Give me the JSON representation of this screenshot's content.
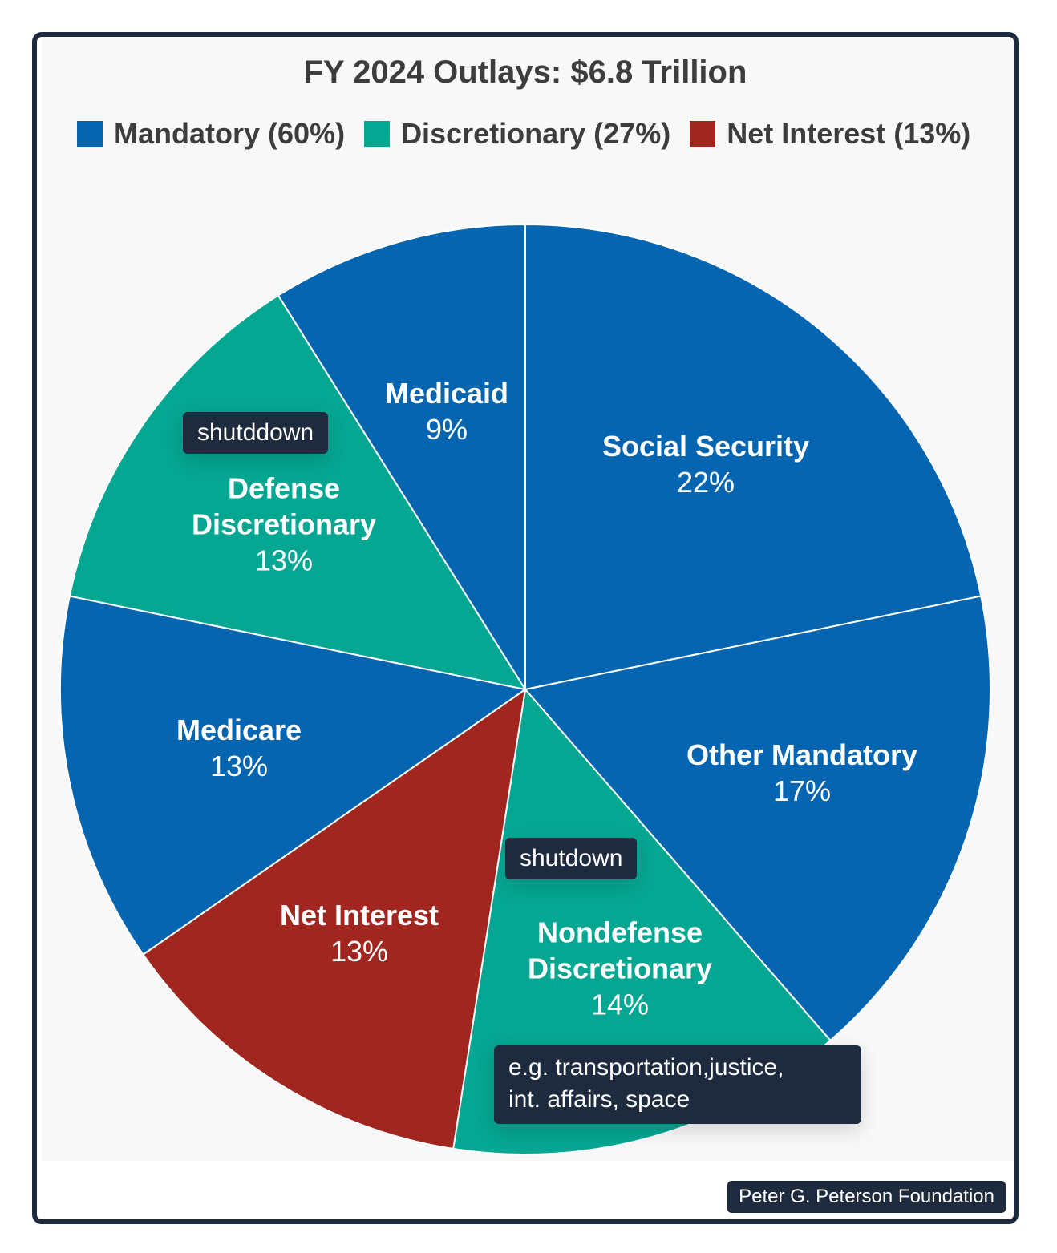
{
  "chart_data": {
    "type": "pie",
    "title": "FY 2024 Outlays: $6.8 Trillion",
    "legend": [
      {
        "label": "Mandatory (60%)",
        "color": "#0565b0"
      },
      {
        "label": "Discretionary (27%)",
        "color": "#05a692"
      },
      {
        "label": "Net Interest (13%)",
        "color": "#a1261f"
      }
    ],
    "legend_position": "top",
    "slices": [
      {
        "name": "Social Security",
        "label": "Social Security",
        "pct_label": "22%",
        "value": 22,
        "color": "#0565b0"
      },
      {
        "name": "Other Mandatory",
        "label": "Other Mandatory",
        "pct_label": "17%",
        "value": 17,
        "color": "#0565b0"
      },
      {
        "name": "Nondefense Discretionary",
        "label": "Nondefense\nDiscretionary",
        "pct_label": "14%",
        "value": 14,
        "color": "#05a692"
      },
      {
        "name": "Net Interest",
        "label": "Net Interest",
        "pct_label": "13%",
        "value": 13,
        "color": "#a1261f"
      },
      {
        "name": "Medicare",
        "label": "Medicare",
        "pct_label": "13%",
        "value": 13,
        "color": "#0565b0"
      },
      {
        "name": "Defense Discretionary",
        "label": "Defense\nDiscretionary",
        "pct_label": "13%",
        "value": 13,
        "color": "#05a692"
      },
      {
        "name": "Medicaid",
        "label": "Medicaid",
        "pct_label": "9%",
        "value": 9,
        "color": "#0565b0"
      }
    ],
    "annotations": [
      {
        "text": "shutddown",
        "slice": "Defense Discretionary"
      },
      {
        "text": "shutdown",
        "slice": "Nondefense Discretionary"
      },
      {
        "text": "e.g. transportation,justice,\nint. affairs, space",
        "slice": "Nondefense Discretionary"
      }
    ]
  },
  "credit": "Peter G. Peterson Foundation",
  "frame_color": "#1e2a3e"
}
